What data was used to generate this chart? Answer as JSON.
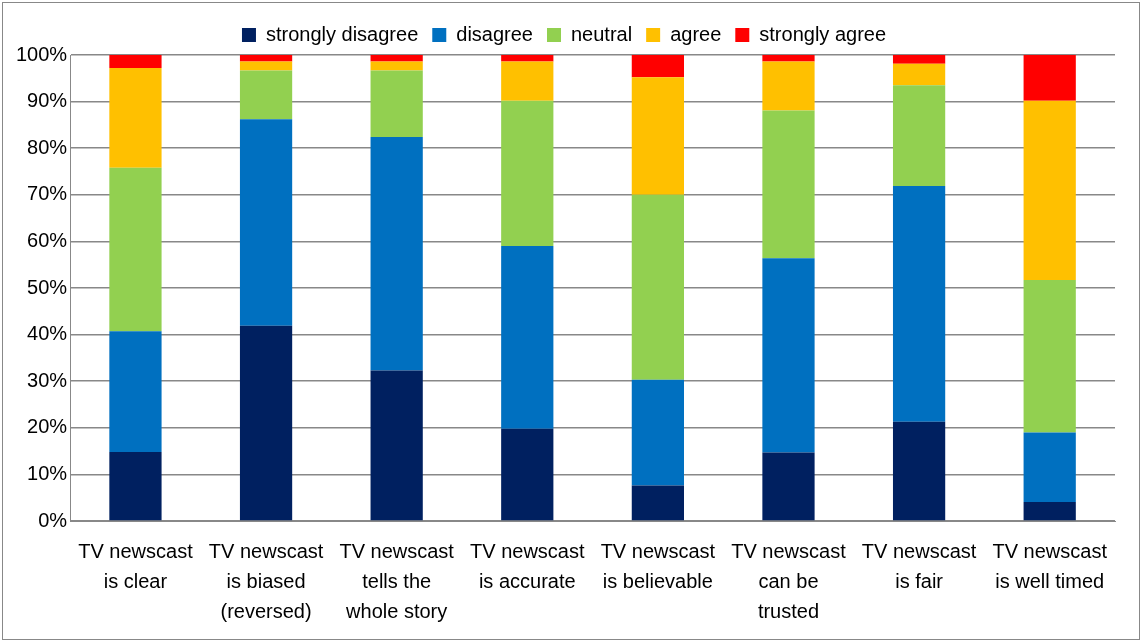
{
  "chart_data": {
    "type": "bar",
    "stacked": true,
    "categories": [
      "TV newscast is clear",
      "TV newscast is biased (reversed)",
      "TV newscast tells the whole story",
      "TV newscast is accurate",
      "TV newscast is believable",
      "TV newscast can be trusted",
      "TV newscast is fair",
      "TV newscast is well timed"
    ],
    "series": [
      {
        "name": "strongly disagree",
        "color": "#002060",
        "values": [
          14.8,
          41.9,
          32.3,
          19.8,
          7.6,
          14.7,
          21.3,
          4.1
        ]
      },
      {
        "name": "disagree",
        "color": "#0070c0",
        "values": [
          25.9,
          44.3,
          50.1,
          39.2,
          22.7,
          41.7,
          50.6,
          14.9
        ]
      },
      {
        "name": "neutral",
        "color": "#92d050",
        "values": [
          35.1,
          10.5,
          14.3,
          31.2,
          39.7,
          31.7,
          21.6,
          32.7
        ]
      },
      {
        "name": "agree",
        "color": "#ffc000",
        "values": [
          21.4,
          1.9,
          1.9,
          8.4,
          25.2,
          10.5,
          4.6,
          38.5
        ]
      },
      {
        "name": "strongly agree",
        "color": "#ff0000",
        "values": [
          2.8,
          1.4,
          1.4,
          1.4,
          4.8,
          1.4,
          1.9,
          9.8
        ]
      }
    ],
    "ylim": [
      0,
      100
    ],
    "yticks": [
      {
        "value": 0,
        "label": "0%"
      },
      {
        "value": 10,
        "label": "10%"
      },
      {
        "value": 20,
        "label": "20%"
      },
      {
        "value": 30,
        "label": "30%"
      },
      {
        "value": 40,
        "label": "40%"
      },
      {
        "value": 50,
        "label": "50%"
      },
      {
        "value": 60,
        "label": "60%"
      },
      {
        "value": 70,
        "label": "70%"
      },
      {
        "value": 80,
        "label": "80%"
      },
      {
        "value": 90,
        "label": "90%"
      },
      {
        "value": 100,
        "label": "100%"
      }
    ],
    "grid": "y",
    "legend": "top"
  }
}
